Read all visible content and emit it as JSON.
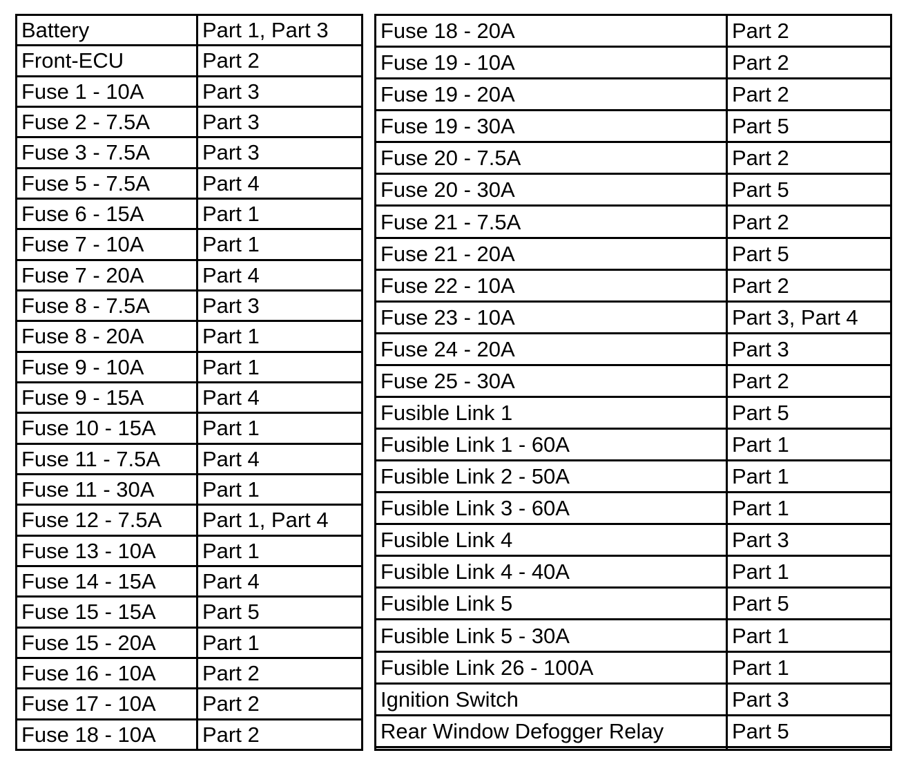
{
  "left_table": [
    [
      "Battery",
      "Part 1, Part 3"
    ],
    [
      "Front-ECU",
      "Part 2"
    ],
    [
      "Fuse 1 - 10A",
      "Part 3"
    ],
    [
      "Fuse 2 - 7.5A",
      "Part 3"
    ],
    [
      "Fuse 3 - 7.5A",
      "Part 3"
    ],
    [
      "Fuse 5 - 7.5A",
      "Part 4"
    ],
    [
      "Fuse 6 - 15A",
      "Part 1"
    ],
    [
      "Fuse 7 - 10A",
      "Part 1"
    ],
    [
      "Fuse 7 - 20A",
      "Part 4"
    ],
    [
      "Fuse 8 - 7.5A",
      "Part 3"
    ],
    [
      "Fuse 8 - 20A",
      "Part 1"
    ],
    [
      "Fuse 9 - 10A",
      "Part 1"
    ],
    [
      "Fuse 9 - 15A",
      "Part 4"
    ],
    [
      "Fuse 10 - 15A",
      "Part 1"
    ],
    [
      "Fuse 11 - 7.5A",
      "Part 4"
    ],
    [
      "Fuse 11 - 30A",
      "Part 1"
    ],
    [
      "Fuse 12 - 7.5A",
      "Part 1, Part 4"
    ],
    [
      "Fuse 13 - 10A",
      "Part 1"
    ],
    [
      "Fuse 14 - 15A",
      "Part 4"
    ],
    [
      "Fuse 15 - 15A",
      "Part 5"
    ],
    [
      "Fuse 15 - 20A",
      "Part 1"
    ],
    [
      "Fuse 16 - 10A",
      "Part 2"
    ],
    [
      "Fuse 17 - 10A",
      "Part 2"
    ],
    [
      "Fuse 18 - 10A",
      "Part 2"
    ]
  ],
  "right_table": [
    [
      "Fuse 18 - 20A",
      "Part 2"
    ],
    [
      "Fuse 19 - 10A",
      "Part 2"
    ],
    [
      "Fuse 19 - 20A",
      "Part 2"
    ],
    [
      "Fuse 19 - 30A",
      "Part 5"
    ],
    [
      "Fuse 20 - 7.5A",
      "Part 2"
    ],
    [
      "Fuse 20 - 30A",
      "Part 5"
    ],
    [
      "Fuse 21 - 7.5A",
      "Part 2"
    ],
    [
      "Fuse 21 - 20A",
      "Part 5"
    ],
    [
      "Fuse 22 - 10A",
      "Part 2"
    ],
    [
      "Fuse 23 - 10A",
      "Part 3, Part 4"
    ],
    [
      "Fuse 24 - 20A",
      "Part 3"
    ],
    [
      "Fuse 25 - 30A",
      "Part 2"
    ],
    [
      "Fusible Link 1",
      "Part 5"
    ],
    [
      "Fusible Link 1 - 60A",
      "Part 1"
    ],
    [
      "Fusible Link 2 - 50A",
      "Part 1"
    ],
    [
      "Fusible Link 3 - 60A",
      "Part 1"
    ],
    [
      "Fusible Link 4",
      "Part 3"
    ],
    [
      "Fusible Link 4 - 40A",
      "Part 1"
    ],
    [
      "Fusible Link 5",
      "Part 5"
    ],
    [
      "Fusible Link 5 - 30A",
      "Part 1"
    ],
    [
      "Fusible Link 26 - 100A",
      "Part 1"
    ],
    [
      "Ignition Switch",
      "Part 3"
    ],
    [
      "Rear Window Defogger Relay",
      "Part 5"
    ],
    [
      "",
      ""
    ]
  ]
}
